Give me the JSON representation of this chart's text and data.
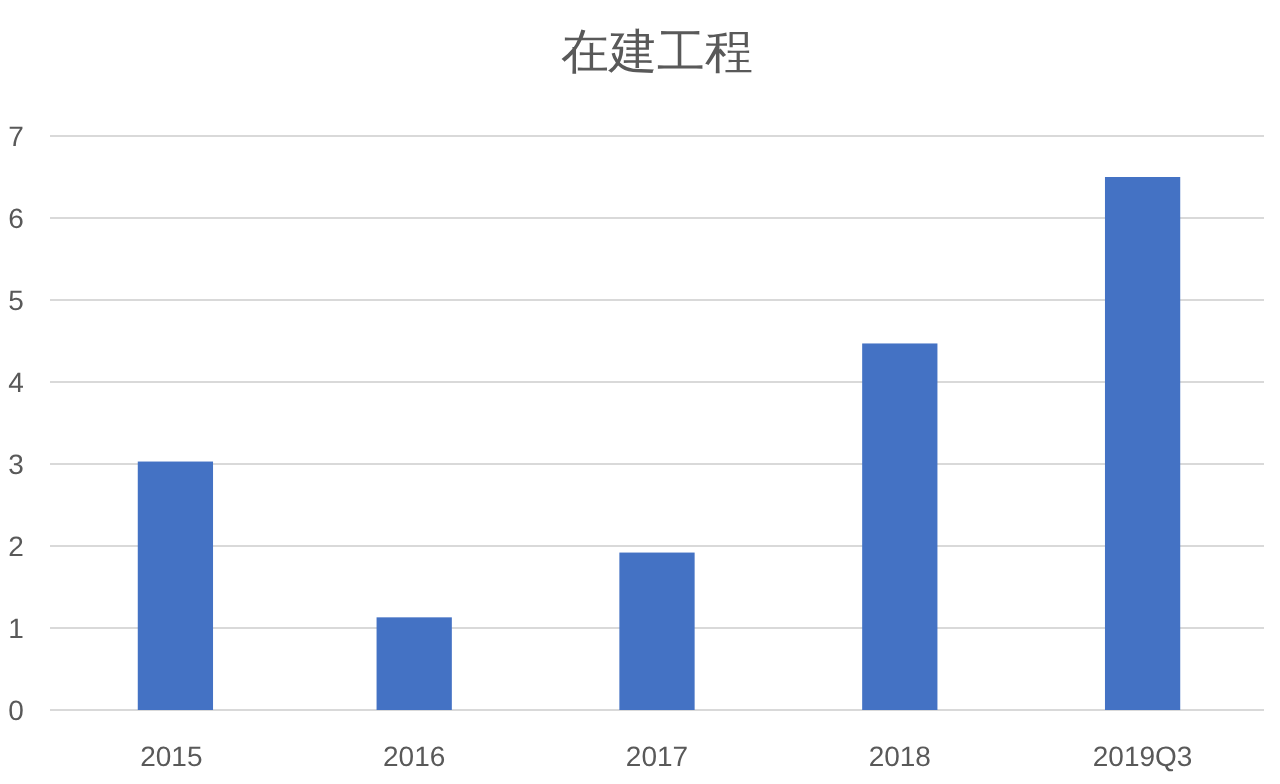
{
  "chart_data": {
    "type": "bar",
    "title": "在建工程",
    "categories": [
      "2015",
      "2016",
      "2017",
      "2018",
      "2019Q3"
    ],
    "values": [
      3.03,
      1.13,
      1.92,
      4.47,
      6.5
    ],
    "color": "#4472c4",
    "ylim": [
      0,
      7
    ],
    "yticks": [
      0,
      1,
      2,
      3,
      4,
      5,
      6,
      7
    ],
    "grid": "y"
  }
}
